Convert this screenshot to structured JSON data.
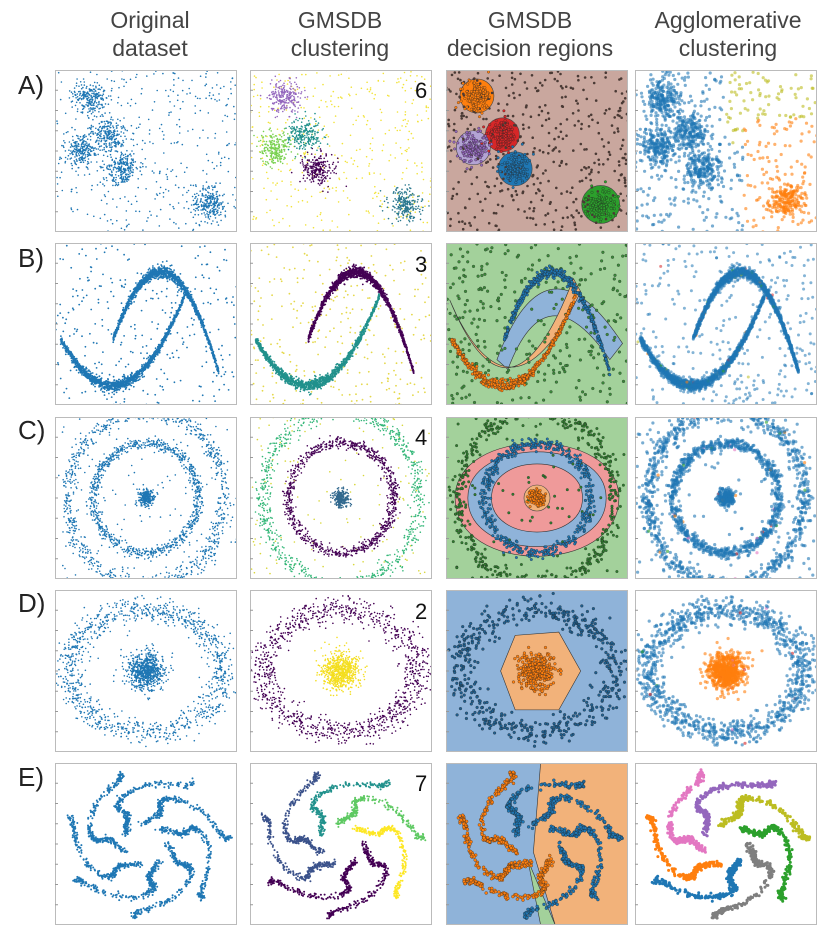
{
  "header": {
    "col1": "Original\ndataset",
    "col2": "GMSDB\nclustering",
    "col3": "GMSDB\ndecision regions",
    "col4": "Agglomerative\nclustering"
  },
  "rows": [
    {
      "label": "A)",
      "count": "6"
    },
    {
      "label": "B)",
      "count": "3"
    },
    {
      "label": "C)",
      "count": "4"
    },
    {
      "label": "D)",
      "count": "2"
    },
    {
      "label": "E)",
      "count": "7"
    }
  ],
  "chart_data": {
    "type": "scatter",
    "title": "",
    "columns": [
      "Original dataset",
      "GMSDB clustering",
      "GMSDB decision regions",
      "Agglomerative clustering"
    ],
    "rows": [
      {
        "label": "A)",
        "gmsdb_clusters": 6,
        "dataset": "six gaussian blobs with uniform noise"
      },
      {
        "label": "B)",
        "gmsdb_clusters": 3,
        "dataset": "two sine-shaped arcs with uniform noise"
      },
      {
        "label": "C)",
        "gmsdb_clusters": 4,
        "dataset": "three concentric rings and central blob with noise"
      },
      {
        "label": "D)",
        "gmsdb_clusters": 2,
        "dataset": "central blob and outer ring"
      },
      {
        "label": "E)",
        "gmsdb_clusters": 7,
        "dataset": "seven spiral worm-shaped clusters"
      }
    ],
    "colors": {
      "blue": "#1f77b4",
      "orange": "#ff7f0e",
      "green": "#2ca02c",
      "red": "#d62728",
      "purple": "#9467bd",
      "brown": "#8c564b",
      "pink": "#e377c2",
      "gray": "#7f7f7f",
      "olive": "#bcbd22",
      "viridis_dark": "#440154",
      "viridis_mid": "#21918c",
      "viridis_yellow": "#fde725"
    }
  }
}
